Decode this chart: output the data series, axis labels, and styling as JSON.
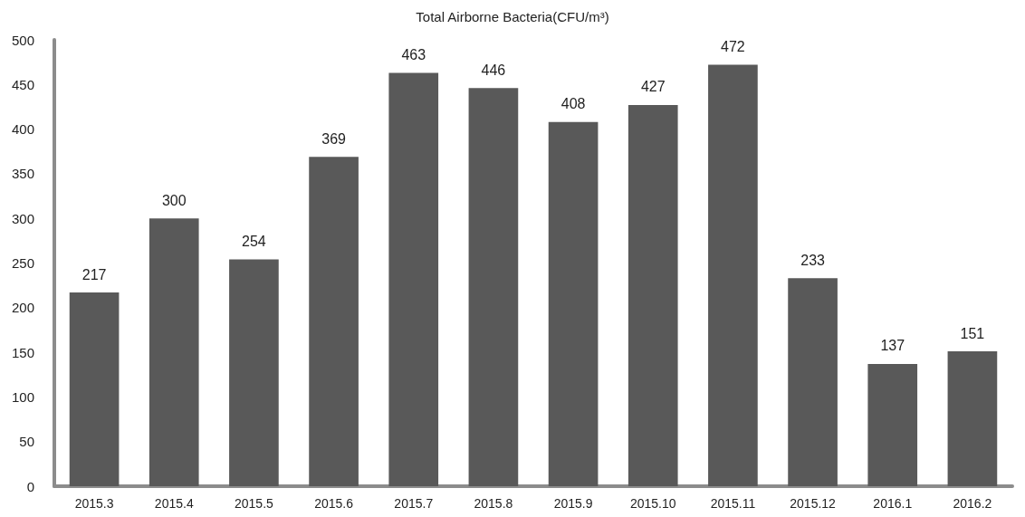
{
  "chart_data": {
    "type": "bar",
    "title": "Total Airborne Bacteria(CFU/m³)",
    "categories": [
      "2015.3",
      "2015.4",
      "2015.5",
      "2015.6",
      "2015.7",
      "2015.8",
      "2015.9",
      "2015.10",
      "2015.11",
      "2015.12",
      "2016.1",
      "2016.2"
    ],
    "values": [
      217,
      300,
      254,
      369,
      463,
      446,
      408,
      427,
      472,
      233,
      137,
      151
    ],
    "color": "#595959",
    "ylim": [
      0,
      500
    ],
    "yticks": [
      0,
      50,
      100,
      150,
      200,
      250,
      300,
      350,
      400,
      450,
      500
    ],
    "grid": false,
    "data_labels": true
  }
}
